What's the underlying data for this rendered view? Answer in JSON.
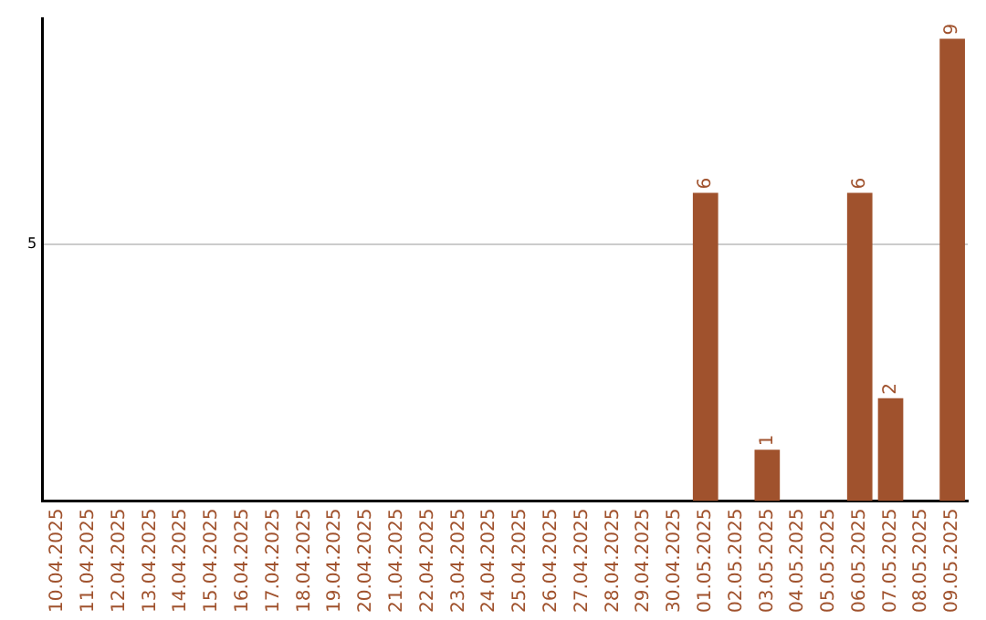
{
  "chart_data": {
    "type": "bar",
    "categories": [
      "10.04.2025",
      "11.04.2025",
      "12.04.2025",
      "13.04.2025",
      "14.04.2025",
      "15.04.2025",
      "16.04.2025",
      "17.04.2025",
      "18.04.2025",
      "19.04.2025",
      "20.04.2025",
      "21.04.2025",
      "22.04.2025",
      "23.04.2025",
      "24.04.2025",
      "25.04.2025",
      "26.04.2025",
      "27.04.2025",
      "28.04.2025",
      "29.04.2025",
      "30.04.2025",
      "01.05.2025",
      "02.05.2025",
      "03.05.2025",
      "04.05.2025",
      "05.05.2025",
      "06.05.2025",
      "07.05.2025",
      "08.05.2025",
      "09.05.2025"
    ],
    "values": [
      null,
      null,
      null,
      null,
      null,
      null,
      null,
      null,
      null,
      null,
      null,
      null,
      null,
      null,
      null,
      null,
      null,
      null,
      null,
      null,
      null,
      6,
      null,
      1,
      null,
      null,
      6,
      2,
      null,
      9
    ],
    "data_labels": true,
    "color": "#a0522d",
    "ylim": [
      0,
      9.4
    ],
    "yticks": [
      5
    ],
    "grid": "y"
  }
}
